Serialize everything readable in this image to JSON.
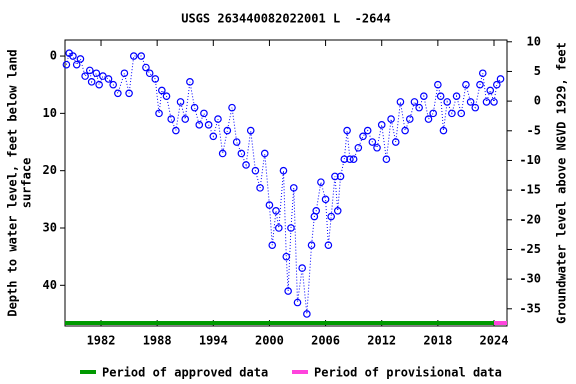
{
  "chart_data": {
    "type": "scatter",
    "title": "USGS 263440082022001 L  -2644",
    "ylabel": [
      "Depth to water level, feet below land",
      "surface"
    ],
    "y2label": "Groundwater level above NGVD 1929, feet",
    "x": [
      1978.3,
      1978.6,
      1979,
      1979.4,
      1979.8,
      1980.3,
      1980.8,
      1981,
      1981.5,
      1981.8,
      1982.2,
      1982.8,
      1983.3,
      1983.8,
      1984.5,
      1985,
      1985.5,
      1986.3,
      1986.8,
      1987.2,
      1987.8,
      1988.2,
      1988.5,
      1989,
      1989.5,
      1990,
      1990.5,
      1991,
      1991.5,
      1992,
      1992.5,
      1993,
      1993.5,
      1994,
      1994.5,
      1995,
      1995.5,
      1996,
      1996.5,
      1997,
      1997.5,
      1998,
      1998.5,
      1999,
      1999.5,
      2000,
      2000.3,
      2000.7,
      2001,
      2001.5,
      2001.8,
      2002,
      2002.3,
      2002.6,
      2003,
      2003.5,
      2004,
      2004.5,
      2004.8,
      2005,
      2005.5,
      2006,
      2006.3,
      2006.6,
      2007,
      2007.3,
      2007.6,
      2008,
      2008.3,
      2008.6,
      2009,
      2009.5,
      2010,
      2010.5,
      2011,
      2011.5,
      2012,
      2012.5,
      2013,
      2013.5,
      2014,
      2014.5,
      2015,
      2015.5,
      2016,
      2016.5,
      2017,
      2017.5,
      2018,
      2018.3,
      2018.6,
      2019,
      2019.5,
      2020,
      2020.5,
      2021,
      2021.5,
      2022,
      2022.5,
      2022.8,
      2023.2,
      2023.6,
      2024,
      2024.3,
      2024.7
    ],
    "y": [
      1.5,
      -0.5,
      0,
      1.5,
      0.5,
      3.5,
      2.5,
      4.5,
      3,
      5,
      3.5,
      4,
      5,
      6.5,
      3,
      6.5,
      0,
      0,
      2,
      3,
      4,
      10,
      6,
      7,
      11,
      13,
      8,
      11,
      4.5,
      9,
      12,
      10,
      12,
      14,
      11,
      17,
      13,
      9,
      15,
      17,
      19,
      13,
      20,
      23,
      17,
      26,
      33,
      27,
      30,
      20,
      35,
      41,
      30,
      23,
      43,
      37,
      45,
      33,
      28,
      27,
      22,
      25,
      33,
      28,
      21,
      27,
      21,
      18,
      13,
      18,
      18,
      16,
      14,
      13,
      15,
      16,
      12,
      18,
      11,
      15,
      8,
      13,
      11,
      8,
      9,
      7,
      11,
      10,
      5,
      7,
      13,
      8,
      10,
      7,
      10,
      5,
      8,
      9,
      5,
      3,
      8,
      6,
      8,
      5,
      4
    ],
    "color": "#0000ff",
    "xlim": [
      1978.15,
      2025.39
    ],
    "xticks": [
      1982,
      1988,
      1994,
      2000,
      2006,
      2012,
      2018,
      2024
    ],
    "ylim": [
      47.1,
      -2.8
    ],
    "yticks": [
      0,
      10,
      20,
      30,
      40
    ],
    "y2lim": [
      -37.9,
      10.3
    ],
    "y2ticks": [
      10,
      5,
      0,
      -5,
      -10,
      -15,
      -20,
      -25,
      -30,
      -35
    ],
    "periods": [
      {
        "name": "Period of approved data",
        "color": "#009900",
        "start": 1978.15,
        "end": 2024.0
      },
      {
        "name": "Period of provisional data",
        "color": "#ff44dd",
        "start": 2024.0,
        "end": 2025.39
      }
    ]
  }
}
